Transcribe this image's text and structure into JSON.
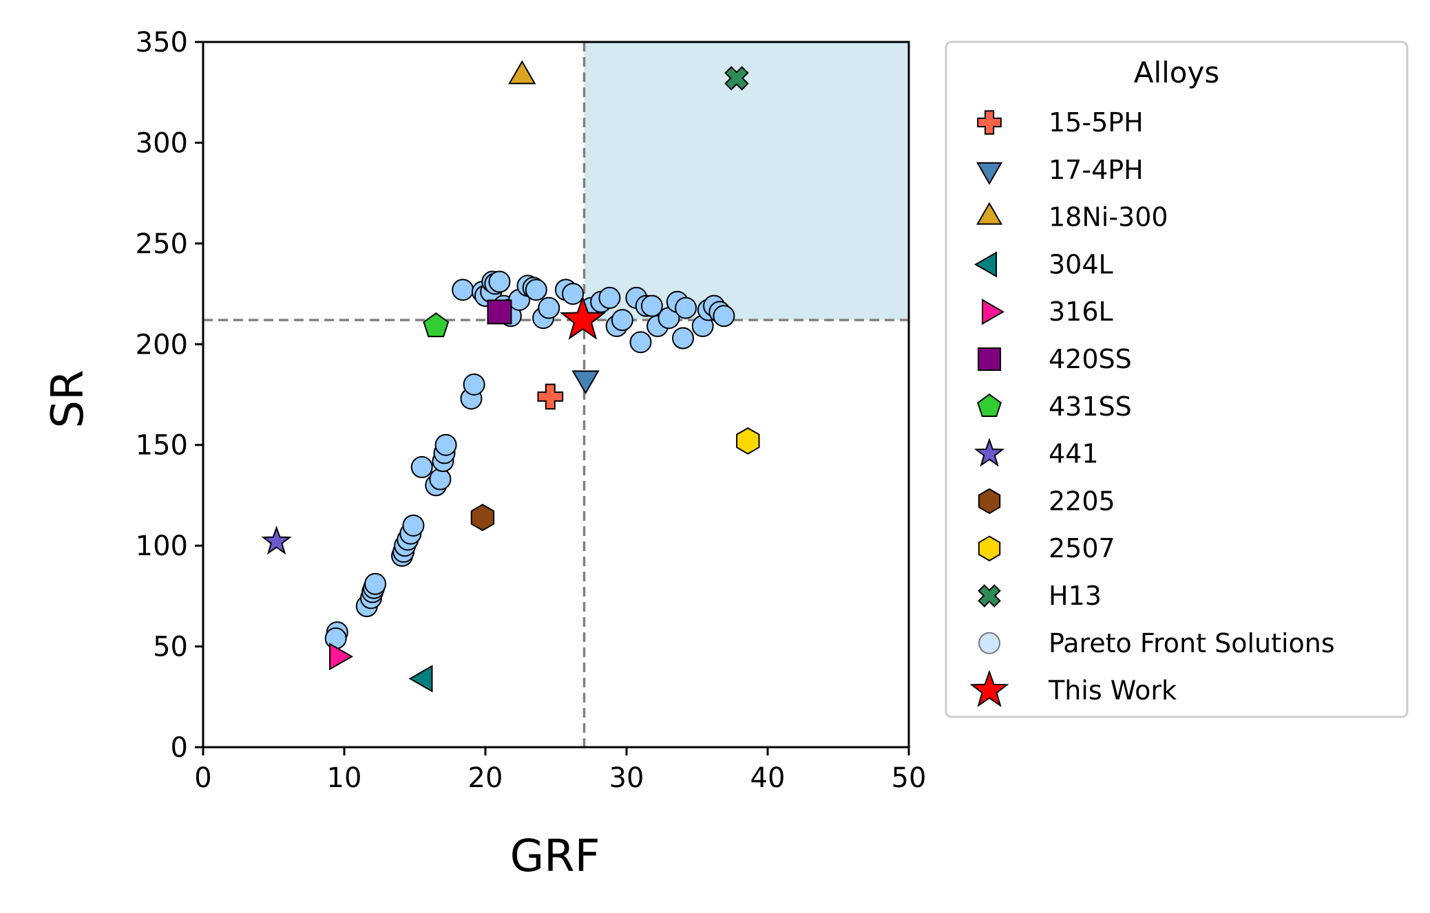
{
  "chart_data": {
    "type": "scatter",
    "xlabel": "GRF",
    "ylabel": "SR",
    "xlim": [
      0,
      50
    ],
    "ylim": [
      0,
      350
    ],
    "xticks": [
      "0",
      "10",
      "20",
      "30",
      "40",
      "50"
    ],
    "yticks": [
      "0",
      "50",
      "100",
      "150",
      "200",
      "250",
      "300",
      "350"
    ],
    "threshold": {
      "x": 27,
      "y": 212,
      "color": "#808080",
      "style": "dashed"
    },
    "target_region": {
      "x": [
        27,
        50
      ],
      "y": [
        212,
        350
      ],
      "color": "#d4eaf0"
    },
    "grid": false,
    "legend": {
      "title": "Alloys",
      "placement": "outside-right"
    },
    "series": [
      {
        "name": "15-5PH",
        "marker": "plus",
        "color": "#ff6347",
        "points": [
          [
            24.6,
            174
          ]
        ]
      },
      {
        "name": "17-4PH",
        "marker": "triangle-down",
        "color": "#4682b4",
        "points": [
          [
            27.1,
            183
          ]
        ]
      },
      {
        "name": "18Ni-300",
        "marker": "triangle-up",
        "color": "#daa520",
        "points": [
          [
            22.6,
            333
          ]
        ]
      },
      {
        "name": "304L",
        "marker": "triangle-left",
        "color": "#008080",
        "points": [
          [
            15.7,
            34
          ]
        ]
      },
      {
        "name": "316L",
        "marker": "triangle-right",
        "color": "#ff1493",
        "points": [
          [
            9.5,
            45
          ]
        ]
      },
      {
        "name": "420SS",
        "marker": "square",
        "color": "#800080",
        "points": [
          [
            21.0,
            216
          ]
        ]
      },
      {
        "name": "431SS",
        "marker": "pentagon",
        "color": "#32cd32",
        "points": [
          [
            16.5,
            209
          ]
        ]
      },
      {
        "name": "441",
        "marker": "star",
        "color": "#6a5acd",
        "points": [
          [
            5.2,
            102
          ]
        ]
      },
      {
        "name": "2205",
        "marker": "hexagon",
        "color": "#8b4513",
        "points": [
          [
            19.8,
            114
          ]
        ]
      },
      {
        "name": "2507",
        "marker": "hexagon",
        "color": "#ffd700",
        "points": [
          [
            38.6,
            152
          ]
        ]
      },
      {
        "name": "H13",
        "marker": "x",
        "color": "#2e8b57",
        "points": [
          [
            37.8,
            332
          ]
        ]
      },
      {
        "name": "Pareto Front Solutions",
        "marker": "circle",
        "color": "#99ccff",
        "points": [
          [
            9.5,
            57
          ],
          [
            9.4,
            54
          ],
          [
            11.6,
            70
          ],
          [
            11.9,
            74
          ],
          [
            12.0,
            77
          ],
          [
            12.1,
            79
          ],
          [
            12.2,
            81
          ],
          [
            14.1,
            95
          ],
          [
            14.2,
            97
          ],
          [
            14.3,
            100
          ],
          [
            14.5,
            103
          ],
          [
            14.7,
            106
          ],
          [
            14.9,
            110
          ],
          [
            15.5,
            139
          ],
          [
            16.5,
            130
          ],
          [
            16.8,
            133
          ],
          [
            17.0,
            142
          ],
          [
            17.1,
            146
          ],
          [
            17.2,
            150
          ],
          [
            19.0,
            173
          ],
          [
            19.2,
            180
          ],
          [
            18.4,
            227
          ],
          [
            19.8,
            226
          ],
          [
            20.0,
            224
          ],
          [
            20.4,
            226
          ],
          [
            20.5,
            231
          ],
          [
            20.7,
            230
          ],
          [
            21.0,
            231
          ],
          [
            21.3,
            219
          ],
          [
            21.6,
            217
          ],
          [
            21.8,
            214
          ],
          [
            22.4,
            222
          ],
          [
            23.0,
            229
          ],
          [
            23.4,
            228
          ],
          [
            23.6,
            227
          ],
          [
            24.1,
            213
          ],
          [
            24.5,
            218
          ],
          [
            25.7,
            227
          ],
          [
            26.2,
            225
          ],
          [
            27.5,
            218
          ],
          [
            28.2,
            221
          ],
          [
            28.8,
            223
          ],
          [
            29.3,
            209
          ],
          [
            29.7,
            212
          ],
          [
            30.7,
            223
          ],
          [
            31.0,
            201
          ],
          [
            31.4,
            219
          ],
          [
            31.8,
            219
          ],
          [
            32.2,
            209
          ],
          [
            33.0,
            213
          ],
          [
            33.6,
            221
          ],
          [
            34.0,
            203
          ],
          [
            34.2,
            218
          ],
          [
            35.4,
            209
          ],
          [
            35.8,
            217
          ],
          [
            36.2,
            219
          ],
          [
            36.6,
            216
          ],
          [
            36.9,
            214
          ]
        ]
      },
      {
        "name": "This Work",
        "marker": "star",
        "color": "#ff0000",
        "points": [
          [
            26.9,
            212
          ]
        ]
      }
    ]
  }
}
